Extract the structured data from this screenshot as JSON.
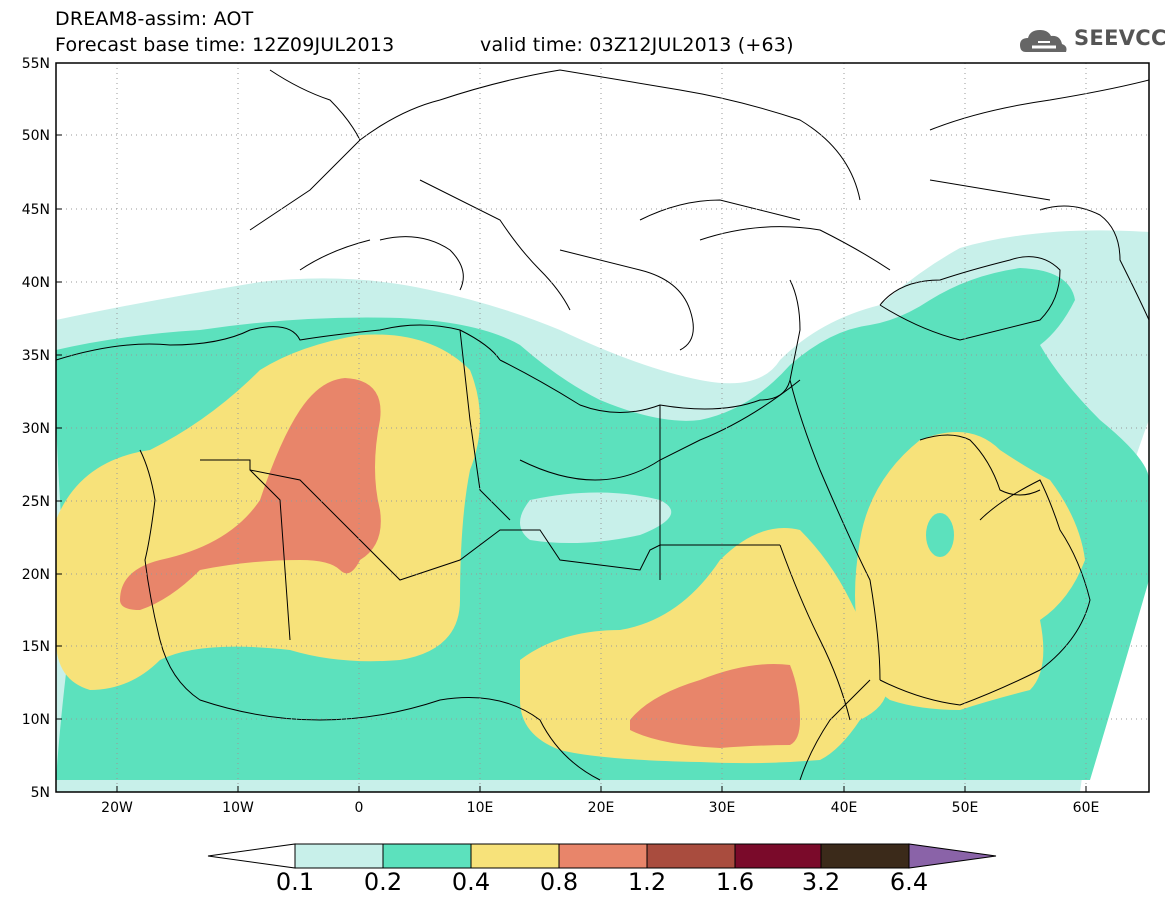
{
  "header": {
    "title": "DREAM8-assim: AOT",
    "base_time": "Forecast base time: 12Z09JUL2013",
    "valid_time": "valid time: 03Z12JUL2013 (+63)"
  },
  "logo": {
    "text": "SEEVCCC",
    "icon": "cloud-icon"
  },
  "map": {
    "region": "North Africa, Mediterranean, Middle East",
    "lat_labels": [
      "55N",
      "50N",
      "45N",
      "40N",
      "35N",
      "30N",
      "25N",
      "20N",
      "15N",
      "10N",
      "5N"
    ],
    "lon_labels": [
      "20W",
      "10W",
      "0",
      "10E",
      "20E",
      "30E",
      "40E",
      "50E",
      "60E"
    ],
    "lat_range": [
      5,
      55
    ],
    "lon_range": [
      -25,
      65
    ],
    "background": "#ffffff",
    "gridlines": "dotted"
  },
  "colorbar": {
    "labels": [
      "0.1",
      "0.2",
      "0.4",
      "0.8",
      "1.2",
      "1.6",
      "3.2",
      "6.4"
    ],
    "colors": [
      "#ffffff",
      "#c8f0ea",
      "#5ce1bd",
      "#f7e27a",
      "#e8856a",
      "#a94c3e",
      "#7a0a2a",
      "#3b2a1a",
      "#8a63a8"
    ]
  }
}
